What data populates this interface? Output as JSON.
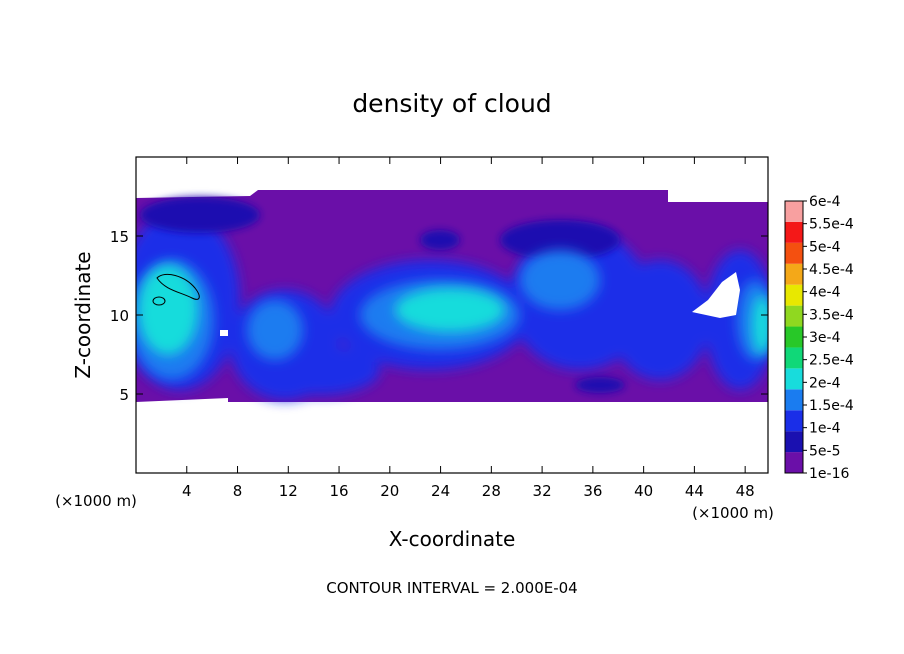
{
  "chart_data": {
    "type": "heatmap",
    "title": "density of cloud",
    "xlabel": "X-coordinate",
    "ylabel": "Z-coordinate",
    "x_unit_left": "(×1000 m)",
    "x_unit_right": "(×1000 m)",
    "footer": "CONTOUR INTERVAL = 2.000E-04",
    "xlim": [
      0,
      49.8
    ],
    "ylim": [
      0,
      20
    ],
    "x_ticks": [
      4,
      8,
      12,
      16,
      20,
      24,
      28,
      32,
      36,
      40,
      44,
      48
    ],
    "x_tick_labels": [
      "4",
      "8",
      "12",
      "16",
      "20",
      "24",
      "28",
      "32",
      "36",
      "40",
      "44",
      "48"
    ],
    "y_ticks": [
      5,
      10,
      15
    ],
    "y_tick_labels": [
      "5",
      "10",
      "15"
    ],
    "cloud_layer_z": [
      4.6,
      17.3
    ],
    "colorbar": {
      "labels": [
        "1e-16",
        "5e-5",
        "1e-4",
        "1.5e-4",
        "2e-4",
        "2.5e-4",
        "3e-4",
        "3.5e-4",
        "4e-4",
        "4.5e-4",
        "5e-4",
        "5.5e-4",
        "6e-4"
      ],
      "colors": [
        "#6a0fa8",
        "#1a10b0",
        "#1a2ee8",
        "#1a7cf0",
        "#18dcdc",
        "#10d878",
        "#28c828",
        "#90d820",
        "#e8e800",
        "#f4a818",
        "#f45010",
        "#f41818",
        "#f8a0a0"
      ]
    },
    "field_samples": [
      {
        "x": 2.5,
        "z": 10.5,
        "value": 0.00019
      },
      {
        "x": 13.0,
        "z": 9.0,
        "value": 0.0001
      },
      {
        "x": 26.0,
        "z": 10.5,
        "value": 0.00016
      },
      {
        "x": 36.0,
        "z": 12.0,
        "value": 9e-05
      },
      {
        "x": 49.0,
        "z": 10.0,
        "value": 0.00017
      },
      {
        "x": 20.0,
        "z": 15.5,
        "value": 1e-16
      }
    ]
  }
}
